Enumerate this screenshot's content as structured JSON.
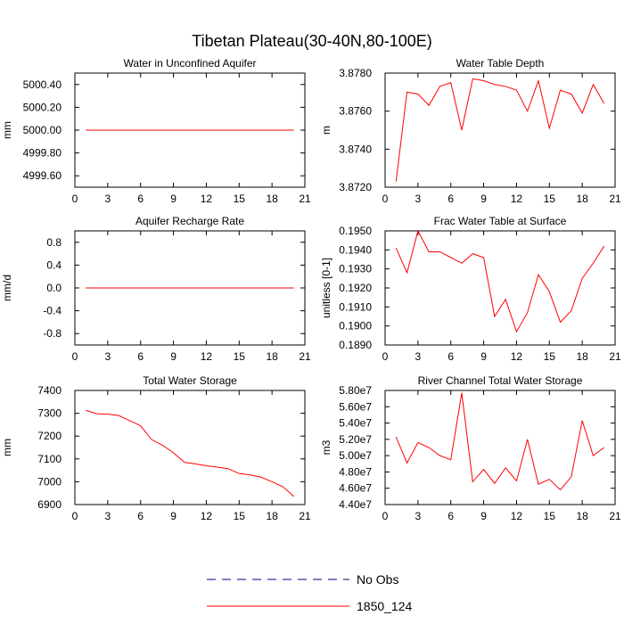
{
  "figure": {
    "title": "Tibetan Plateau(30-40N,80-100E)",
    "colors": {
      "model": "#ff0000",
      "obs": "#000080",
      "axis": "#000000"
    }
  },
  "legend": {
    "items": [
      {
        "label": "No Obs",
        "style": "dashed",
        "color": "#000080"
      },
      {
        "label": "1850_124",
        "style": "solid",
        "color": "#ff0000"
      }
    ]
  },
  "chart_data": [
    {
      "type": "line",
      "title": "Water in Unconfined Aquifer",
      "ylabel": "mm",
      "xlim": [
        0,
        21
      ],
      "ylim": [
        4999.5,
        5000.5
      ],
      "xticks": [
        0,
        3,
        6,
        9,
        12,
        15,
        18,
        21
      ],
      "yticks": [
        4999.6,
        4999.8,
        5000.0,
        5000.2,
        5000.4
      ],
      "ytick_labels": [
        "4999.60",
        "4999.80",
        "5000.00",
        "5000.20",
        "5000.40"
      ],
      "x": [
        1,
        2,
        3,
        4,
        5,
        6,
        7,
        8,
        9,
        10,
        11,
        12,
        13,
        14,
        15,
        16,
        17,
        18,
        19,
        20
      ],
      "series": [
        {
          "values": [
            5000,
            5000,
            5000,
            5000,
            5000,
            5000,
            5000,
            5000,
            5000,
            5000,
            5000,
            5000,
            5000,
            5000,
            5000,
            5000,
            5000,
            5000,
            5000,
            5000
          ]
        }
      ]
    },
    {
      "type": "line",
      "title": "Water Table Depth",
      "ylabel": "m",
      "xlim": [
        0,
        21
      ],
      "ylim": [
        3.872,
        3.878
      ],
      "xticks": [
        0,
        3,
        6,
        9,
        12,
        15,
        18,
        21
      ],
      "yticks": [
        3.872,
        3.874,
        3.876,
        3.878
      ],
      "ytick_labels": [
        "3.8720",
        "3.8740",
        "3.8760",
        "3.8780"
      ],
      "x": [
        1,
        2,
        3,
        4,
        5,
        6,
        7,
        8,
        9,
        10,
        11,
        12,
        13,
        14,
        15,
        16,
        17,
        18,
        19,
        20
      ],
      "series": [
        {
          "values": [
            3.8723,
            3.877,
            3.8769,
            3.8763,
            3.8773,
            3.8775,
            3.875,
            3.8777,
            3.8776,
            3.8774,
            3.8773,
            3.8771,
            3.876,
            3.8776,
            3.8751,
            3.8771,
            3.8769,
            3.8759,
            3.8774,
            3.8764
          ]
        }
      ]
    },
    {
      "type": "line",
      "title": "Aquifer Recharge Rate",
      "ylabel": "mm/d",
      "xlim": [
        0,
        21
      ],
      "ylim": [
        -1.0,
        1.0
      ],
      "xticks": [
        0,
        3,
        6,
        9,
        12,
        15,
        18,
        21
      ],
      "yticks": [
        -0.8,
        -0.4,
        0.0,
        0.4,
        0.8
      ],
      "ytick_labels": [
        "-0.8",
        "-0.4",
        "0.0",
        "0.4",
        "0.8"
      ],
      "x": [
        1,
        2,
        3,
        4,
        5,
        6,
        7,
        8,
        9,
        10,
        11,
        12,
        13,
        14,
        15,
        16,
        17,
        18,
        19,
        20
      ],
      "series": [
        {
          "values": [
            0,
            0,
            0,
            0,
            0,
            0,
            0,
            0,
            0,
            0,
            0,
            0,
            0,
            0,
            0,
            0,
            0,
            0,
            0,
            0
          ]
        }
      ]
    },
    {
      "type": "line",
      "title": "Frac Water Table at Surface",
      "ylabel": "unitless [0-1]",
      "xlim": [
        0,
        21
      ],
      "ylim": [
        0.189,
        0.195
      ],
      "xticks": [
        0,
        3,
        6,
        9,
        12,
        15,
        18,
        21
      ],
      "yticks": [
        0.189,
        0.19,
        0.191,
        0.192,
        0.193,
        0.194,
        0.195
      ],
      "ytick_labels": [
        "0.1890",
        "0.1900",
        "0.1910",
        "0.1920",
        "0.1930",
        "0.1940",
        "0.1950"
      ],
      "x": [
        1,
        2,
        3,
        4,
        5,
        6,
        7,
        8,
        9,
        10,
        11,
        12,
        13,
        14,
        15,
        16,
        17,
        18,
        19,
        20
      ],
      "series": [
        {
          "values": [
            0.1941,
            0.1928,
            0.195,
            0.1939,
            0.1939,
            0.1936,
            0.1933,
            0.1938,
            0.1936,
            0.1905,
            0.1914,
            0.1897,
            0.1907,
            0.1927,
            0.1918,
            0.1902,
            0.1908,
            0.1925,
            0.1933,
            0.1942
          ]
        }
      ]
    },
    {
      "type": "line",
      "title": "Total Water Storage",
      "ylabel": "mm",
      "xlim": [
        0,
        21
      ],
      "ylim": [
        6900,
        7400
      ],
      "xticks": [
        0,
        3,
        6,
        9,
        12,
        15,
        18,
        21
      ],
      "yticks": [
        6900,
        7000,
        7100,
        7200,
        7300,
        7400
      ],
      "ytick_labels": [
        "6900",
        "7000",
        "7100",
        "7200",
        "7300",
        "7400"
      ],
      "x": [
        1,
        2,
        3,
        4,
        5,
        6,
        7,
        8,
        9,
        10,
        11,
        12,
        13,
        14,
        15,
        16,
        17,
        18,
        19,
        20
      ],
      "series": [
        {
          "values": [
            7313,
            7298,
            7296,
            7290,
            7268,
            7245,
            7185,
            7160,
            7127,
            7085,
            7078,
            7070,
            7064,
            7057,
            7036,
            7030,
            7020,
            7000,
            6978,
            6935
          ]
        }
      ]
    },
    {
      "type": "line",
      "title": "River Channel Total Water Storage",
      "ylabel": "m3",
      "xlim": [
        0,
        21
      ],
      "ylim": [
        44000000,
        58000000
      ],
      "xticks": [
        0,
        3,
        6,
        9,
        12,
        15,
        18,
        21
      ],
      "yticks": [
        44000000,
        46000000,
        48000000,
        50000000,
        52000000,
        54000000,
        56000000,
        58000000
      ],
      "ytick_labels": [
        "4.40e7",
        "4.60e7",
        "4.80e7",
        "5.00e7",
        "5.20e7",
        "5.40e7",
        "5.60e7",
        "5.80e7"
      ],
      "x": [
        1,
        2,
        3,
        4,
        5,
        6,
        7,
        8,
        9,
        10,
        11,
        12,
        13,
        14,
        15,
        16,
        17,
        18,
        19,
        20
      ],
      "series": [
        {
          "values": [
            52300000,
            49100000,
            51600000,
            51000000,
            50000000,
            49500000,
            57700000,
            46800000,
            48300000,
            46600000,
            48500000,
            46900000,
            52000000,
            46500000,
            47100000,
            45800000,
            47400000,
            54300000,
            50000000,
            51000000
          ]
        }
      ]
    }
  ]
}
